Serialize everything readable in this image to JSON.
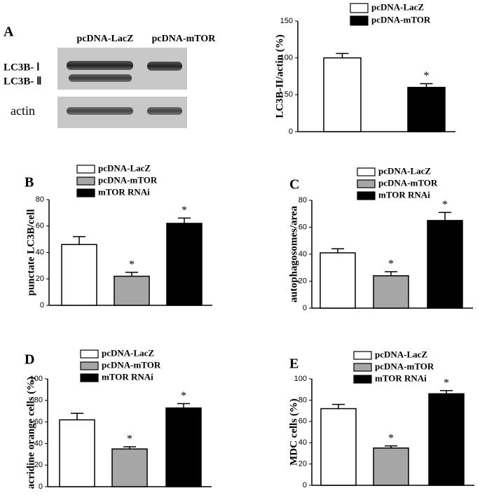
{
  "blot": {
    "panel": "A",
    "columns": [
      "pcDNA-LacZ",
      "pcDNA-mTOR"
    ],
    "rows": [
      "LC3B- Ⅰ",
      "LC3B- Ⅱ",
      "actin"
    ]
  },
  "chart_data": [
    {
      "type": "bar",
      "ylabel": "LC3B-II/actin (%)",
      "ylim": [
        0,
        150
      ],
      "yticks": [
        0,
        50,
        100,
        150
      ],
      "series": [
        {
          "name": "pcDNA-LacZ",
          "color": "#ffffff",
          "values": [
            100
          ],
          "errors": [
            6
          ]
        },
        {
          "name": "pcDNA-mTOR",
          "color": "#000000",
          "values": [
            60
          ],
          "errors": [
            5
          ],
          "annotation": "*"
        }
      ]
    },
    {
      "type": "bar",
      "panel": "B",
      "ylabel": "punctate LC3B/cell",
      "ylim": [
        0,
        80
      ],
      "yticks": [
        0,
        20,
        40,
        60,
        80
      ],
      "series": [
        {
          "name": "pcDNA-LacZ",
          "color": "#ffffff",
          "values": [
            46
          ],
          "errors": [
            6
          ]
        },
        {
          "name": "pcDNA-mTOR",
          "color": "#a6a6a6",
          "values": [
            22
          ],
          "errors": [
            3
          ],
          "annotation": "*"
        },
        {
          "name": "mTOR RNAi",
          "color": "#000000",
          "values": [
            62
          ],
          "errors": [
            4
          ],
          "annotation": "*"
        }
      ]
    },
    {
      "type": "bar",
      "panel": "C",
      "ylabel": "autophagosomes/area",
      "ylim": [
        0,
        80
      ],
      "yticks": [
        0,
        20,
        40,
        60,
        80
      ],
      "series": [
        {
          "name": "pcDNA-LacZ",
          "color": "#ffffff",
          "values": [
            41
          ],
          "errors": [
            3
          ]
        },
        {
          "name": "pcDNA-mTOR",
          "color": "#a6a6a6",
          "values": [
            24
          ],
          "errors": [
            3
          ],
          "annotation": "*"
        },
        {
          "name": "mTOR RNAi",
          "color": "#000000",
          "values": [
            65
          ],
          "errors": [
            6
          ],
          "annotation": "*"
        }
      ]
    },
    {
      "type": "bar",
      "panel": "D",
      "ylabel": "acridine orange cells (%)",
      "ylim": [
        0,
        100
      ],
      "yticks": [
        0,
        20,
        40,
        60,
        80,
        100
      ],
      "series": [
        {
          "name": "pcDNA-LacZ",
          "color": "#ffffff",
          "values": [
            62
          ],
          "errors": [
            6
          ]
        },
        {
          "name": "pcDNA-mTOR",
          "color": "#a6a6a6",
          "values": [
            35
          ],
          "errors": [
            2
          ],
          "annotation": "*"
        },
        {
          "name": "mTOR RNAi",
          "color": "#000000",
          "values": [
            73
          ],
          "errors": [
            4
          ],
          "annotation": "*"
        }
      ]
    },
    {
      "type": "bar",
      "panel": "E",
      "ylabel": "MDC cells (%)",
      "ylim": [
        0,
        100
      ],
      "yticks": [
        0,
        20,
        40,
        60,
        80,
        100
      ],
      "series": [
        {
          "name": "pcDNA-LacZ",
          "color": "#ffffff",
          "values": [
            72
          ],
          "errors": [
            4
          ]
        },
        {
          "name": "pcDNA-mTOR",
          "color": "#a6a6a6",
          "values": [
            35
          ],
          "errors": [
            2
          ],
          "annotation": "*"
        },
        {
          "name": "mTOR RNAi",
          "color": "#000000",
          "values": [
            86
          ],
          "errors": [
            3
          ],
          "annotation": "*"
        }
      ]
    }
  ]
}
